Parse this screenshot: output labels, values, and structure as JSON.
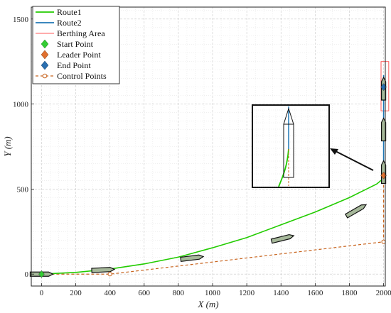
{
  "chart_data": {
    "type": "line",
    "xlabel": "X (m)",
    "ylabel": "Y (m)",
    "xlim": [
      -60,
      2010
    ],
    "ylim": [
      -70,
      1570
    ],
    "xticks": [
      0,
      200,
      400,
      600,
      800,
      1000,
      1200,
      1400,
      1600,
      1800,
      2000
    ],
    "yticks": [
      0,
      500,
      1000,
      1500
    ],
    "xtick_labels": [
      "0",
      "200",
      "400",
      "600",
      "800",
      "1000",
      "1200",
      "1400",
      "1600",
      "1800",
      "2000"
    ],
    "ytick_labels": [
      "0",
      "500",
      "1000",
      "1500"
    ],
    "grid": true,
    "legend_position": "top-left",
    "series": [
      {
        "name": "Route1",
        "color": "#22cc00",
        "x": [
          0,
          200,
          400,
          600,
          800,
          1000,
          1200,
          1400,
          1600,
          1800,
          1900,
          1960,
          1990,
          2000
        ],
        "y": [
          0,
          10,
          30,
          60,
          100,
          155,
          215,
          290,
          365,
          450,
          500,
          530,
          555,
          570
        ]
      },
      {
        "name": "Route2",
        "color": "#1f77b4",
        "x": [
          2000,
          2000
        ],
        "y": [
          570,
          1170
        ]
      }
    ],
    "berthing_area": {
      "name": "Berthing Area",
      "color": "#ff5a5a",
      "x": [
        1985,
        2030
      ],
      "y": [
        960,
        1250
      ]
    },
    "start_point": {
      "name": "Start Point",
      "color": "#33cc33",
      "x": 0,
      "y": 0
    },
    "leader_point": {
      "name": "Leader Point",
      "color": "#e07030",
      "x": 2000,
      "y": 580
    },
    "end_point": {
      "name": "End Point",
      "color": "#2a6fb0",
      "x": 2000,
      "y": 1100
    },
    "control_points": {
      "name": "Control Points",
      "color": "#c8641e",
      "x": [
        0,
        400,
        2000,
        2000
      ],
      "y": [
        0,
        0,
        190,
        580
      ]
    },
    "ships": [
      {
        "x": 0,
        "y": 0,
        "angle": 0
      },
      {
        "x": 360,
        "y": 25,
        "angle": 3
      },
      {
        "x": 880,
        "y": 95,
        "angle": 7
      },
      {
        "x": 1410,
        "y": 210,
        "angle": 14
      },
      {
        "x": 1840,
        "y": 375,
        "angle": 30
      },
      {
        "x": 2000,
        "y": 600,
        "angle": 90
      },
      {
        "x": 2000,
        "y": 850,
        "angle": 90
      },
      {
        "x": 2000,
        "y": 1090,
        "angle": 90
      }
    ]
  }
}
